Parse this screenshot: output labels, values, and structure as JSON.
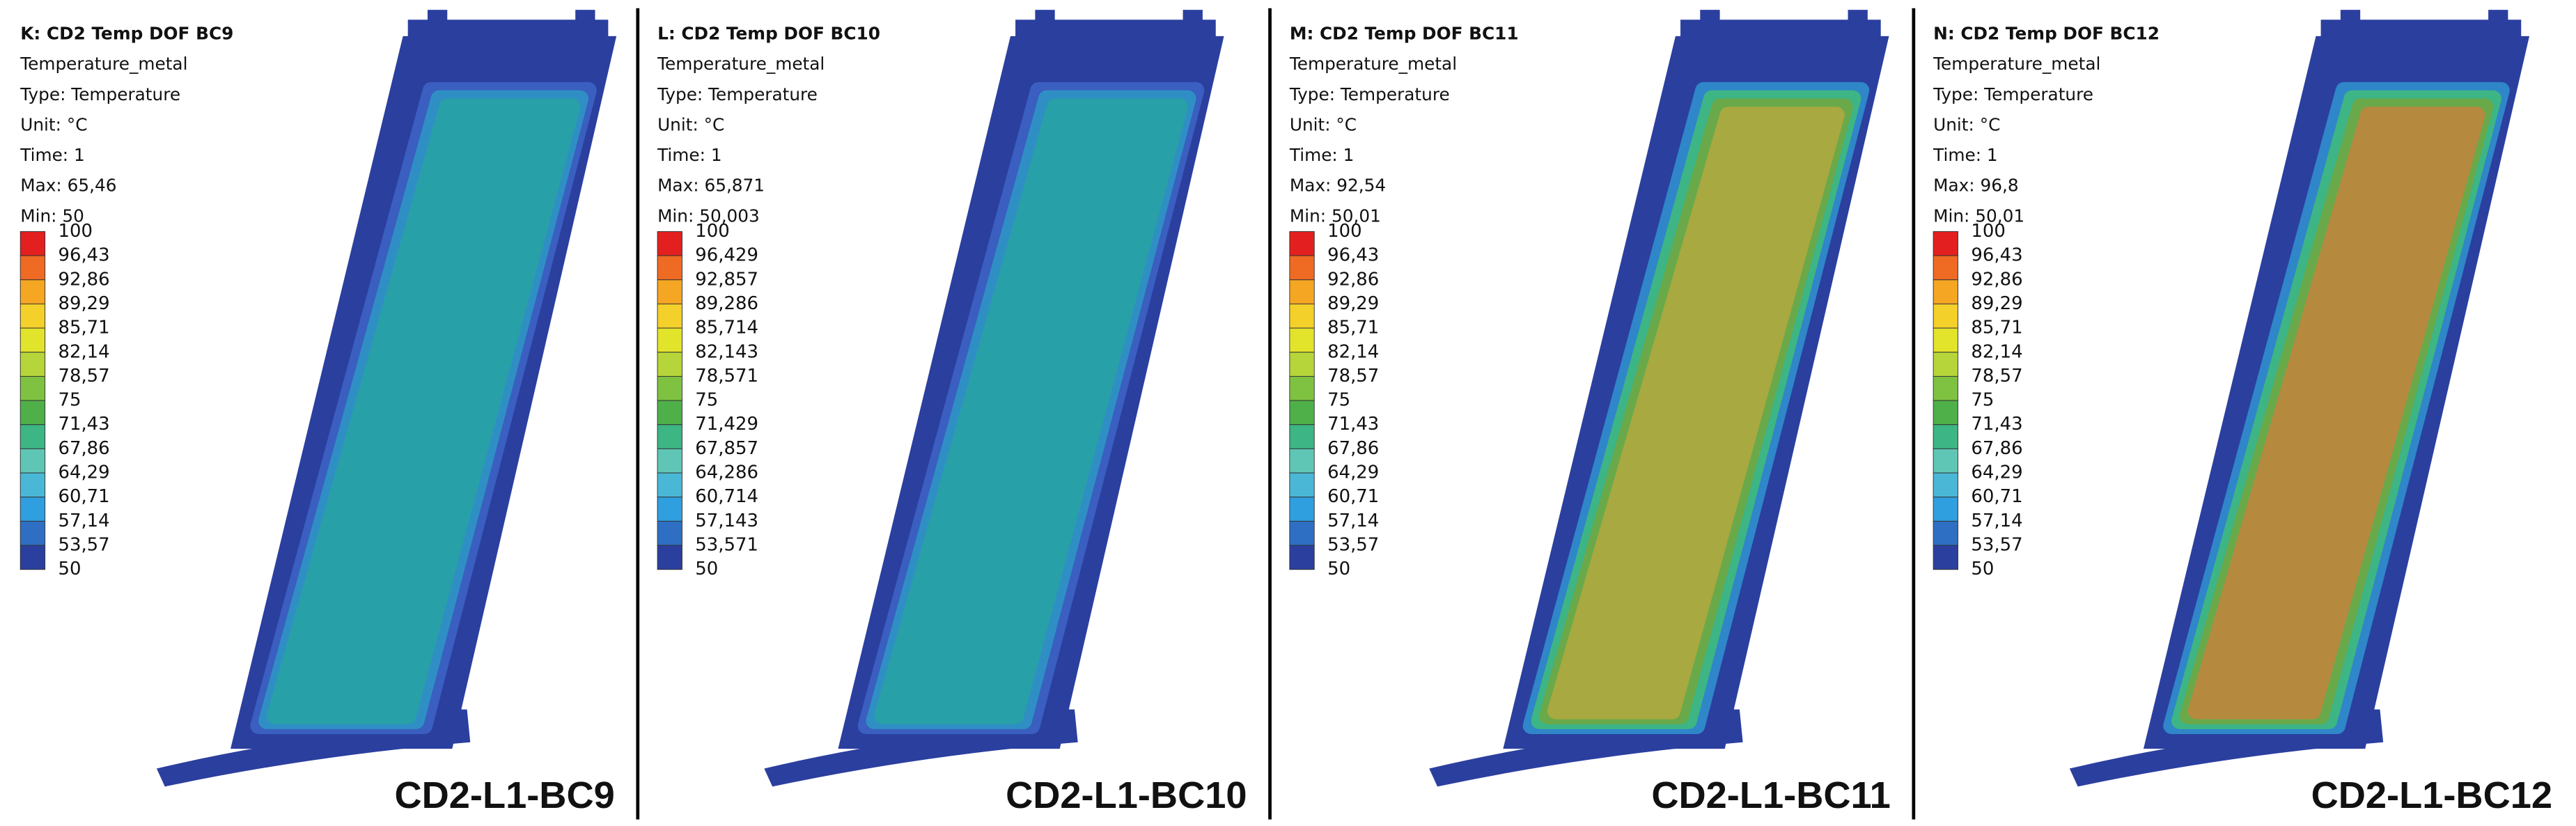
{
  "panels": [
    {
      "header": [
        "K: CD2 Temp DOF BC9",
        "Temperature_metal",
        "Type: Temperature",
        "Unit: °C",
        "Time: 1",
        "Max: 65,46",
        "Min: 50"
      ],
      "legend": [
        "100",
        "96,43",
        "92,86",
        "89,29",
        "85,71",
        "82,14",
        "78,57",
        "75",
        "71,43",
        "67,86",
        "64,29",
        "60,71",
        "57,14",
        "53,57",
        "50"
      ],
      "caption": "CD2-L1-BC9"
    },
    {
      "header": [
        "L: CD2 Temp DOF BC10",
        "Temperature_metal",
        "Type: Temperature",
        "Unit: °C",
        "Time: 1",
        "Max: 65,871",
        "Min: 50,003"
      ],
      "legend": [
        "100",
        "96,429",
        "92,857",
        "89,286",
        "85,714",
        "82,143",
        "78,571",
        "75",
        "71,429",
        "67,857",
        "64,286",
        "60,714",
        "57,143",
        "53,571",
        "50"
      ],
      "caption": "CD2-L1-BC10"
    },
    {
      "header": [
        "M: CD2 Temp DOF BC11",
        "Temperature_metal",
        "Type: Temperature",
        "Unit: °C",
        "Time: 1",
        "Max: 92,54",
        "Min: 50,01"
      ],
      "legend": [
        "100",
        "96,43",
        "92,86",
        "89,29",
        "85,71",
        "82,14",
        "78,57",
        "75",
        "71,43",
        "67,86",
        "64,29",
        "60,71",
        "57,14",
        "53,57",
        "50"
      ],
      "caption": "CD2-L1-BC11"
    },
    {
      "header": [
        "N: CD2 Temp DOF BC12",
        "Temperature_metal",
        "Type: Temperature",
        "Unit: °C",
        "Time: 1",
        "Max: 96,8",
        "Min: 50,01"
      ],
      "legend": [
        "100",
        "96,43",
        "92,86",
        "89,29",
        "85,71",
        "82,14",
        "78,57",
        "75",
        "71,43",
        "67,86",
        "64,29",
        "60,71",
        "57,14",
        "53,57",
        "50"
      ],
      "caption": "CD2-L1-BC12"
    }
  ]
}
